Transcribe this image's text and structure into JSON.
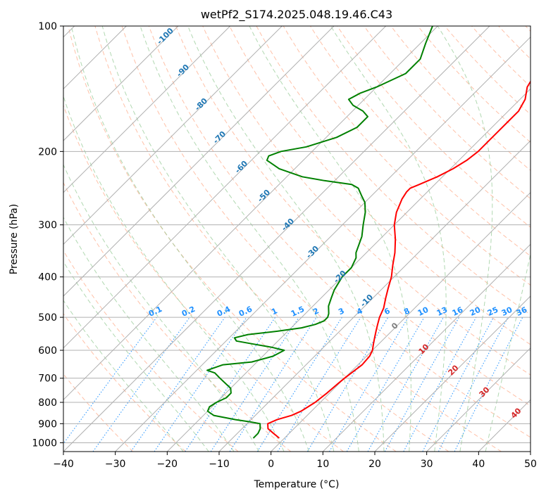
{
  "chart_data": {
    "type": "line",
    "title": "wetPf2_S174.2025.048.19.46.C43",
    "xlabel": "Temperature (°C)",
    "ylabel": "Pressure (hPa)",
    "xlim": [
      -40,
      50
    ],
    "ylim": [
      1050,
      100
    ],
    "y_scale": "log",
    "skew": true,
    "grid": true,
    "x_ticks": [
      -40,
      -30,
      -20,
      -10,
      0,
      10,
      20,
      30,
      40,
      50
    ],
    "x_tick_labels": [
      "−40",
      "−30",
      "−20",
      "−10",
      "0",
      "10",
      "20",
      "30",
      "40",
      "50"
    ],
    "y_ticks": [
      1000,
      900,
      800,
      700,
      600,
      500,
      400,
      300,
      200,
      100
    ],
    "y_tick_labels": [
      "1000",
      "900",
      "800",
      "700",
      "600",
      "500",
      "400",
      "300",
      "200",
      "100"
    ],
    "series": [
      {
        "color": "#ff0000",
        "points": [
          [
            975,
            -1
          ],
          [
            950,
            -3
          ],
          [
            925,
            -5
          ],
          [
            900,
            -6
          ],
          [
            880,
            -5
          ],
          [
            860,
            -3
          ],
          [
            840,
            -2
          ],
          [
            820,
            -1.5
          ],
          [
            800,
            -1
          ],
          [
            760,
            -0.5
          ],
          [
            720,
            -0.2
          ],
          [
            700,
            0
          ],
          [
            650,
            0.8
          ],
          [
            620,
            0.6
          ],
          [
            600,
            0
          ],
          [
            580,
            -1
          ],
          [
            560,
            -2
          ],
          [
            540,
            -3
          ],
          [
            520,
            -4
          ],
          [
            500,
            -5
          ],
          [
            475,
            -6
          ],
          [
            450,
            -7.5
          ],
          [
            425,
            -9
          ],
          [
            400,
            -10.5
          ],
          [
            375,
            -12.5
          ],
          [
            350,
            -14.5
          ],
          [
            325,
            -17
          ],
          [
            300,
            -20
          ],
          [
            280,
            -22
          ],
          [
            260,
            -23.5
          ],
          [
            250,
            -24
          ],
          [
            245,
            -24
          ],
          [
            240,
            -23
          ],
          [
            235,
            -22
          ],
          [
            230,
            -21
          ],
          [
            220,
            -19.5
          ],
          [
            210,
            -18.5
          ],
          [
            200,
            -18
          ],
          [
            190,
            -18
          ],
          [
            180,
            -18
          ],
          [
            170,
            -18
          ],
          [
            160,
            -18
          ],
          [
            150,
            -19
          ],
          [
            140,
            -21
          ],
          [
            130,
            -22
          ],
          [
            120,
            -24
          ],
          [
            110,
            -27
          ],
          [
            100,
            -31
          ]
        ]
      },
      {
        "color": "#008000",
        "points": [
          [
            975,
            -6
          ],
          [
            950,
            -6
          ],
          [
            925,
            -6.5
          ],
          [
            900,
            -7.5
          ],
          [
            890,
            -10
          ],
          [
            880,
            -13
          ],
          [
            860,
            -18
          ],
          [
            840,
            -20
          ],
          [
            820,
            -20.5
          ],
          [
            800,
            -20
          ],
          [
            780,
            -19
          ],
          [
            760,
            -19
          ],
          [
            740,
            -20
          ],
          [
            700,
            -24
          ],
          [
            680,
            -26
          ],
          [
            670,
            -28
          ],
          [
            650,
            -26
          ],
          [
            640,
            -21
          ],
          [
            620,
            -18
          ],
          [
            600,
            -17
          ],
          [
            590,
            -20
          ],
          [
            580,
            -24
          ],
          [
            570,
            -28
          ],
          [
            560,
            -29
          ],
          [
            550,
            -27
          ],
          [
            540,
            -22
          ],
          [
            530,
            -18
          ],
          [
            520,
            -16
          ],
          [
            510,
            -15
          ],
          [
            500,
            -15
          ],
          [
            490,
            -15.5
          ],
          [
            470,
            -17
          ],
          [
            450,
            -18
          ],
          [
            430,
            -19
          ],
          [
            400,
            -20
          ],
          [
            380,
            -20
          ],
          [
            360,
            -21
          ],
          [
            350,
            -22
          ],
          [
            320,
            -24
          ],
          [
            300,
            -26
          ],
          [
            280,
            -28
          ],
          [
            265,
            -30
          ],
          [
            255,
            -32
          ],
          [
            245,
            -34
          ],
          [
            240,
            -36
          ],
          [
            235,
            -42
          ],
          [
            230,
            -47
          ],
          [
            220,
            -53
          ],
          [
            210,
            -57
          ],
          [
            205,
            -57.5
          ],
          [
            200,
            -56
          ],
          [
            195,
            -52
          ],
          [
            185,
            -48
          ],
          [
            175,
            -46
          ],
          [
            165,
            -46
          ],
          [
            160,
            -48
          ],
          [
            155,
            -51
          ],
          [
            150,
            -53
          ],
          [
            145,
            -52
          ],
          [
            140,
            -50
          ],
          [
            130,
            -47
          ],
          [
            120,
            -47
          ],
          [
            110,
            -49
          ],
          [
            100,
            -51
          ]
        ]
      }
    ],
    "dry_adiabat_labels": [
      "0",
      "10",
      "20",
      "30",
      "40"
    ],
    "moist_adiabat_labels": [
      "-100",
      "-90",
      "-80",
      "-70",
      "-60",
      "-50",
      "-40",
      "-30",
      "-20",
      "-10"
    ],
    "mixing_ratio_labels": [
      "0.1",
      "0.2",
      "0.4",
      "0.6",
      "1",
      "1.5",
      "2",
      "3",
      "4",
      "6",
      "8",
      "10",
      "13",
      "16",
      "20",
      "25",
      "30",
      "36"
    ],
    "colors": {
      "temperature": "#ff0000",
      "dewpoint": "#008000",
      "dry_adiabat": "#d62728",
      "moist_adiabat": "#1f77b4",
      "mixing_ratio": "#1e90ff",
      "grid": "#b0b0b0",
      "background_dry": "#ffa07a",
      "background_moist": "#90c890"
    }
  }
}
